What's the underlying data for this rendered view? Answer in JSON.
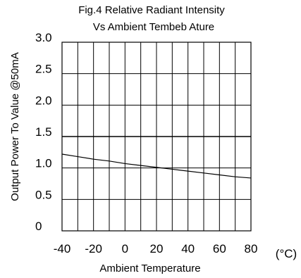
{
  "chart_data": {
    "type": "line",
    "title": "Fig.4 Relative Radiant Intensity",
    "subtitle": "Vs Ambient Tembeb Ature",
    "xlabel": "Ambient Temperature",
    "ylabel": "Output Power To Value @50mA",
    "x_unit": "(°C)",
    "xlim": [
      -40,
      80
    ],
    "x_ticks": [
      {
        "value": -40,
        "label": "-40"
      },
      {
        "value": -20,
        "label": "-20"
      },
      {
        "value": 0,
        "label": "0"
      },
      {
        "value": 20,
        "label": "20"
      },
      {
        "value": 40,
        "label": "40"
      },
      {
        "value": 60,
        "label": "60"
      },
      {
        "value": 80,
        "label": "80"
      }
    ],
    "y_ticks": [
      {
        "value": 0,
        "label": "0"
      },
      {
        "value": 0.5,
        "label": "0.5"
      },
      {
        "value": 1.0,
        "label": "1.0"
      },
      {
        "value": 1.5,
        "label": "1.5"
      },
      {
        "value": 2.0,
        "label": "2.0"
      },
      {
        "value": 2.5,
        "label": "2.5"
      },
      {
        "value": 3.0,
        "label": "3.0"
      }
    ],
    "x_gridlines": [
      -40,
      -30,
      -20,
      -10,
      0,
      10,
      20,
      30,
      40,
      50,
      60,
      70,
      80
    ],
    "y_gridlines": [
      0.5,
      1.0,
      1.5,
      2.0,
      2.5,
      3.0
    ],
    "grid": true,
    "legend": "none",
    "line_color": "#000000",
    "series": [
      {
        "x": [
          -40,
          -30,
          -20,
          -10,
          0,
          10,
          20,
          30,
          40,
          50,
          60,
          70,
          80
        ],
        "y": [
          1.22,
          1.18,
          1.14,
          1.11,
          1.07,
          1.04,
          1.01,
          0.98,
          0.95,
          0.92,
          0.89,
          0.86,
          0.84
        ]
      }
    ]
  }
}
